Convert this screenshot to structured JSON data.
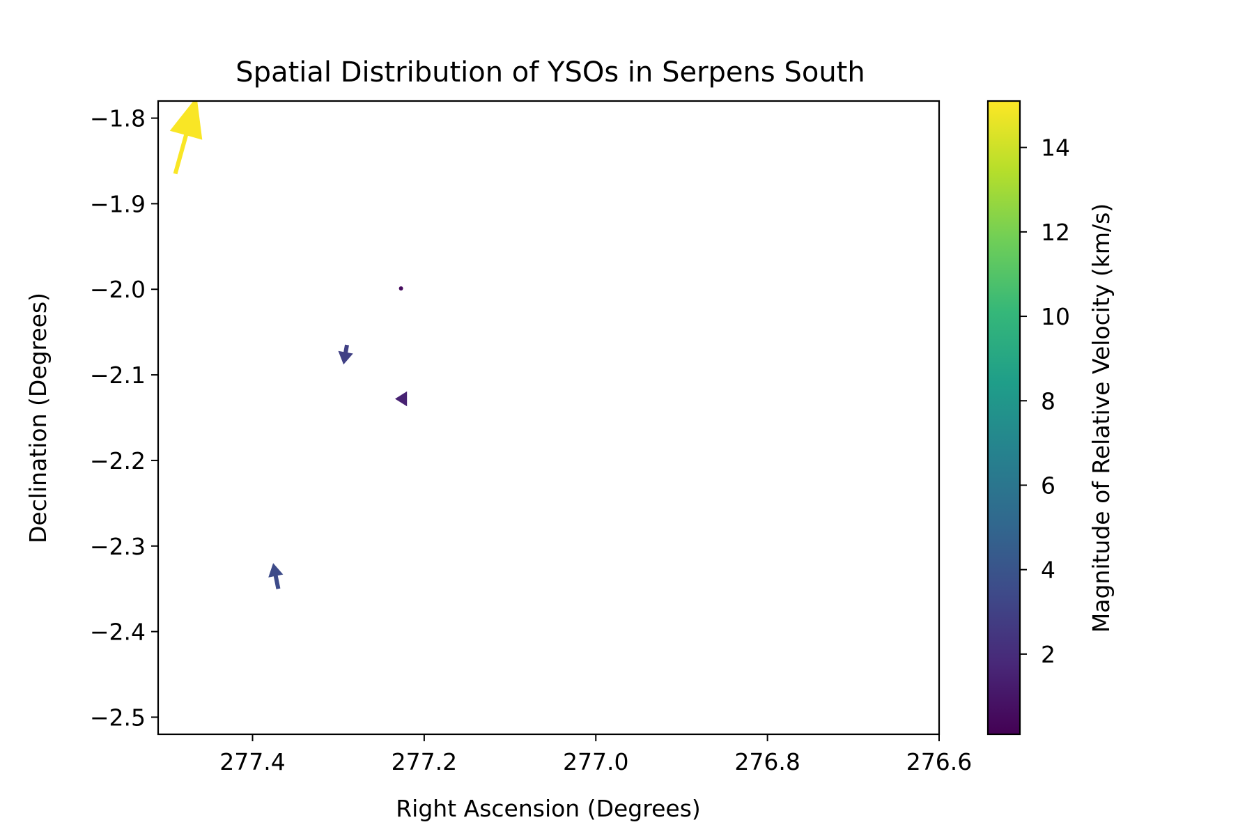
{
  "chart_data": {
    "type": "quiver",
    "title": "Spatial Distribution of YSOs in Serpens South",
    "xlabel": "Right Ascension (Degrees)",
    "ylabel": "Declination (Degrees)",
    "xlim": [
      277.51,
      276.6
    ],
    "ylim": [
      -2.52,
      -1.78
    ],
    "x_ticks": [
      277.4,
      277.2,
      277.0,
      276.8,
      276.6
    ],
    "x_tick_labels": [
      "277.4",
      "277.2",
      "277.0",
      "276.8",
      "276.6"
    ],
    "y_ticks": [
      -1.8,
      -1.9,
      -2.0,
      -2.1,
      -2.2,
      -2.3,
      -2.4,
      -2.5
    ],
    "y_tick_labels": [
      "−1.8",
      "−1.9",
      "−2.0",
      "−2.1",
      "−2.2",
      "−2.3",
      "−2.4",
      "−2.5"
    ],
    "grid": false,
    "colorbar": {
      "label": "Magnitude of Relative Velocity (km/s)",
      "range": [
        0.1,
        15.1
      ],
      "ticks": [
        2,
        4,
        6,
        8,
        10,
        12,
        14
      ],
      "tick_labels": [
        "2",
        "4",
        "6",
        "8",
        "10",
        "12",
        "14"
      ],
      "colormap": "viridis",
      "colors": [
        "#440154",
        "#482878",
        "#3e4a89",
        "#31688e",
        "#26828e",
        "#1f9e89",
        "#35b779",
        "#6ece58",
        "#b5de2b",
        "#fde725"
      ]
    },
    "vectors": [
      {
        "ra": 277.49,
        "dec": -1.865,
        "d_ra": -0.025,
        "d_dec": 0.09,
        "magnitude": 15.0
      },
      {
        "ra": 277.227,
        "dec": -1.999,
        "d_ra": 0.0,
        "d_dec": 0.0,
        "magnitude": 0.5
      },
      {
        "ra": 277.29,
        "dec": -2.065,
        "d_ra": 0.004,
        "d_dec": -0.023,
        "magnitude": 3.0
      },
      {
        "ra": 277.22,
        "dec": -2.128,
        "d_ra": 0.014,
        "d_dec": 0.0,
        "magnitude": 1.5
      },
      {
        "ra": 277.37,
        "dec": -2.35,
        "d_ra": 0.006,
        "d_dec": 0.03,
        "magnitude": 3.5
      }
    ]
  }
}
